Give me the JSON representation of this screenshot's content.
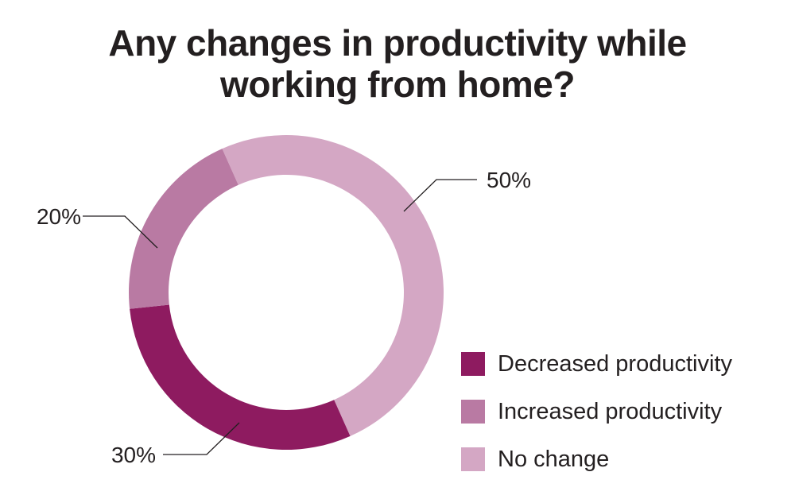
{
  "title_lines": [
    "Any changes in productivity while",
    "working from home?"
  ],
  "chart_data": {
    "type": "pie",
    "title": "Any changes in productivity while working from home?",
    "slices": [
      {
        "name": "Decreased productivity",
        "value": 30,
        "label": "30%",
        "color": "#8e1b60"
      },
      {
        "name": "Increased productivity",
        "value": 20,
        "label": "20%",
        "color": "#b97aa3"
      },
      {
        "name": "No change",
        "value": 50,
        "label": "50%",
        "color": "#d4a7c4"
      }
    ],
    "legend_position": "bottom-right",
    "donut": true
  }
}
